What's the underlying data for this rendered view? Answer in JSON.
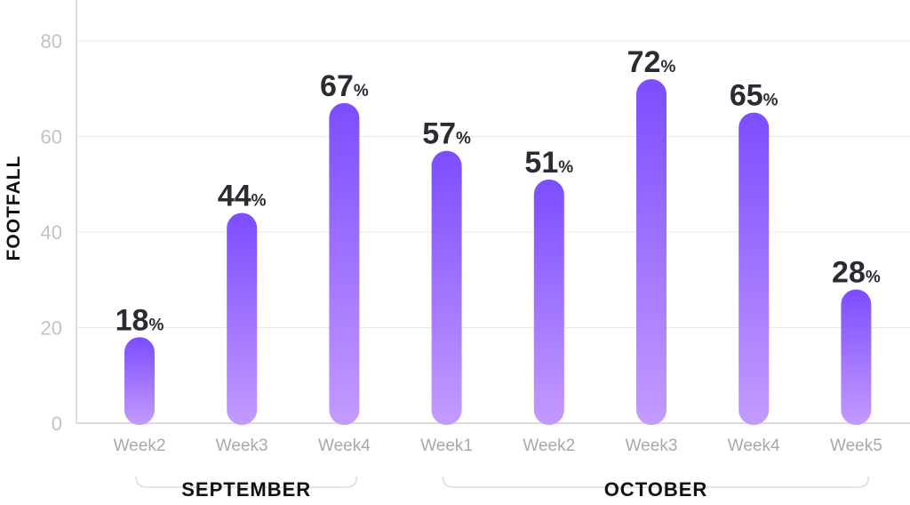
{
  "chart_data": {
    "type": "bar",
    "ylabel": "FOOTFALL",
    "ylim": [
      0,
      80
    ],
    "yticks": [
      0,
      20,
      40,
      60,
      80
    ],
    "grid": true,
    "categories": [
      "Week2",
      "Week3",
      "Week4",
      "Week1",
      "Week2",
      "Week3",
      "Week4",
      "Week5"
    ],
    "values": [
      18,
      44,
      67,
      57,
      51,
      72,
      65,
      28
    ],
    "value_suffix": "%",
    "groups": [
      {
        "label": "SEPTEMBER",
        "categories": [
          "Week2",
          "Week3",
          "Week4"
        ]
      },
      {
        "label": "OCTOBER",
        "categories": [
          "Week1",
          "Week2",
          "Week3",
          "Week4",
          "Week5"
        ]
      }
    ],
    "bar_gradient": {
      "top": "#7c4dff",
      "bottom": "#c39bff"
    }
  }
}
